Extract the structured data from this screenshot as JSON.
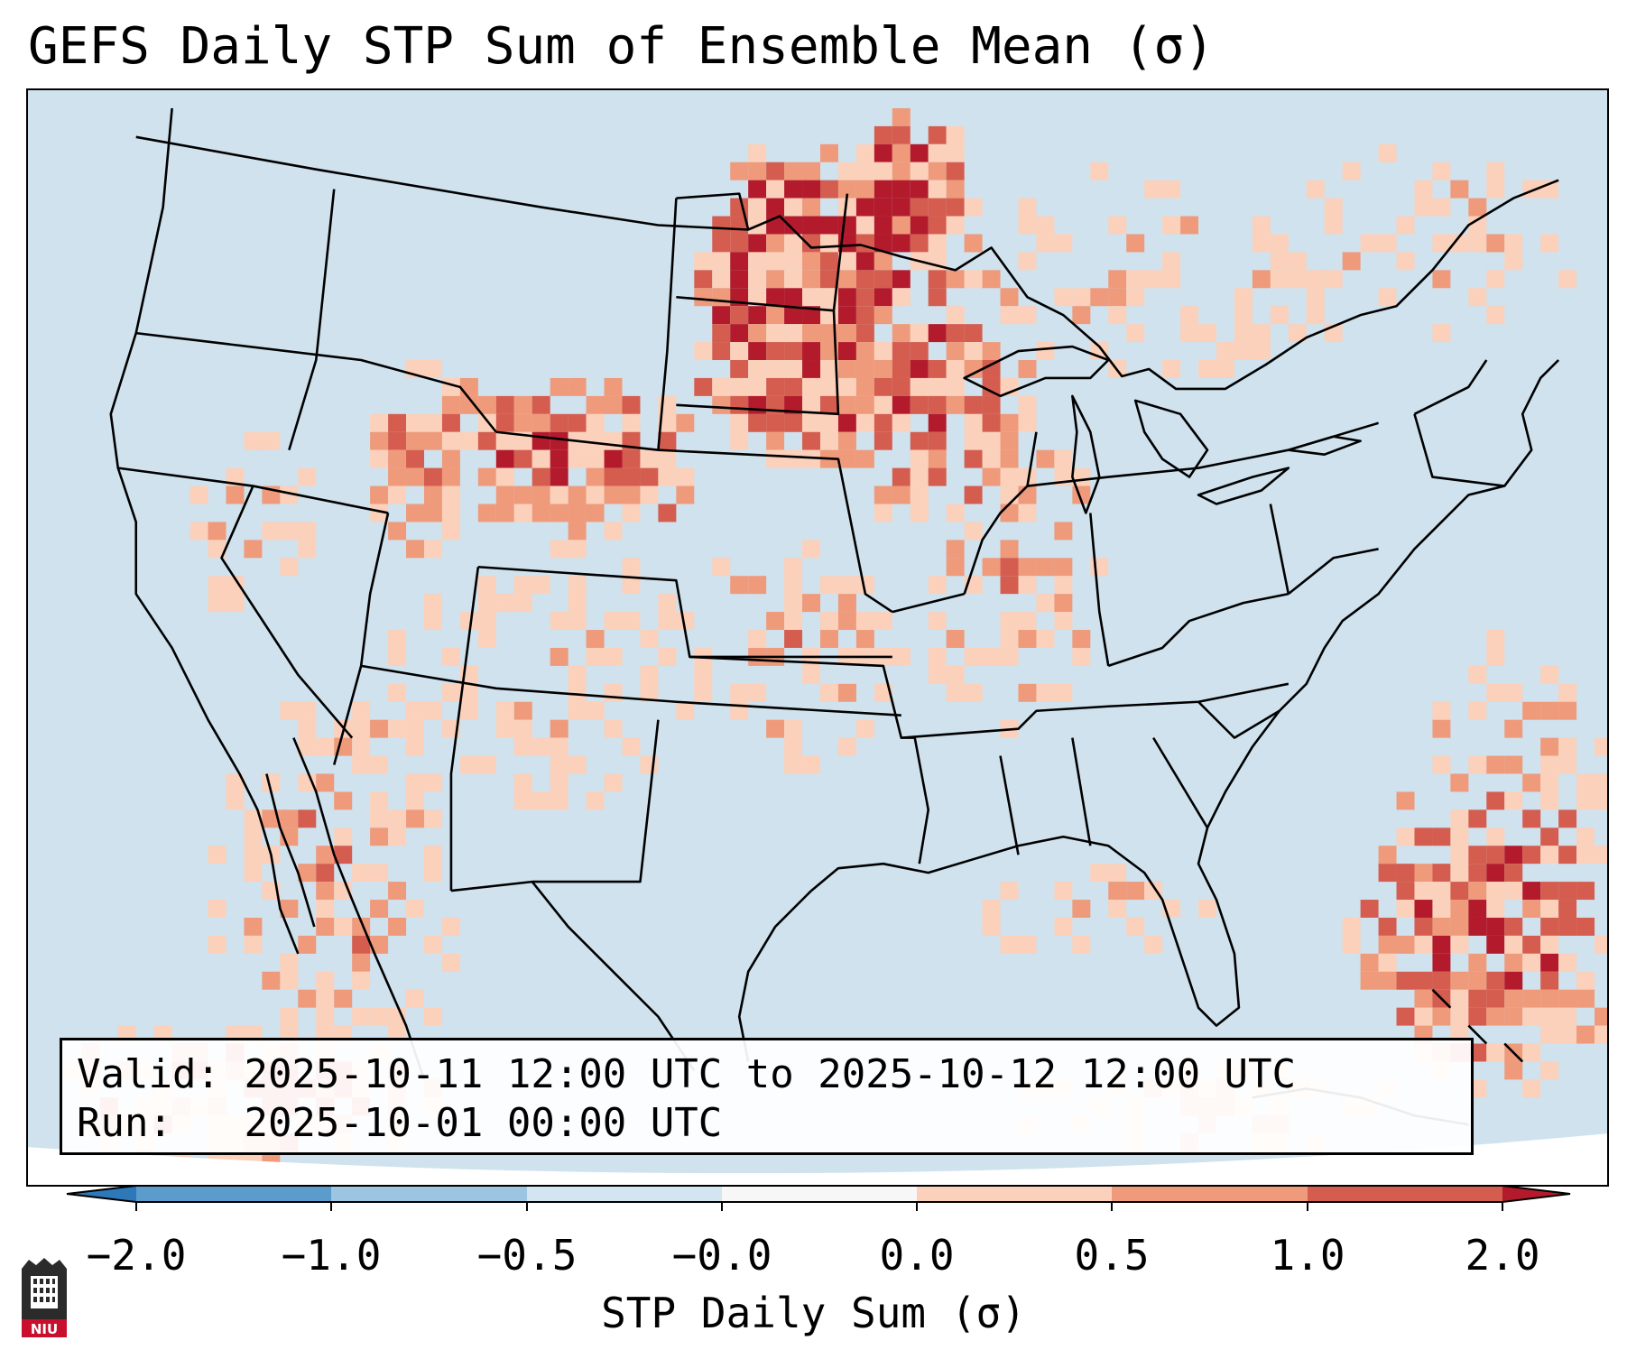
{
  "title": "GEFS Daily STP Sum of Ensemble Mean (σ)",
  "info": {
    "valid_label": "Valid:",
    "valid_value": "2025-10-11 12:00 UTC to 2025-10-12 12:00 UTC",
    "run_label": "Run:",
    "run_value": "2025-10-01 00:00 UTC"
  },
  "colorbar": {
    "label": "STP Daily Sum (σ)",
    "ticks": [
      "−2.0",
      "−1.0",
      "−0.5",
      "−0.0",
      "0.0",
      "0.5",
      "1.0",
      "2.0"
    ],
    "colors": [
      "#2e78b9",
      "#5c9ccc",
      "#9cc5e2",
      "#d2e5f0",
      "#f7f7f7",
      "#fbd1bb",
      "#ef9a7b",
      "#d45d4f",
      "#b31b2c"
    ],
    "under_color": "#2e78b9",
    "over_color": "#b31b2c"
  },
  "map": {
    "background_color": "#cfe2ee",
    "projection_edge_color": "#ffffff",
    "anomaly_regions": [
      {
        "region": "Northern Plains / Dakotas",
        "level": "strong positive"
      },
      {
        "region": "Upper Midwest / Great Lakes",
        "level": "moderate positive"
      },
      {
        "region": "Wyoming / Montana",
        "level": "moderate positive"
      },
      {
        "region": "Western Atlantic near Bahamas",
        "level": "moderate positive"
      },
      {
        "region": "Baja California / Gulf of California",
        "level": "moderate positive"
      }
    ]
  },
  "logo": {
    "text": "NIU"
  }
}
